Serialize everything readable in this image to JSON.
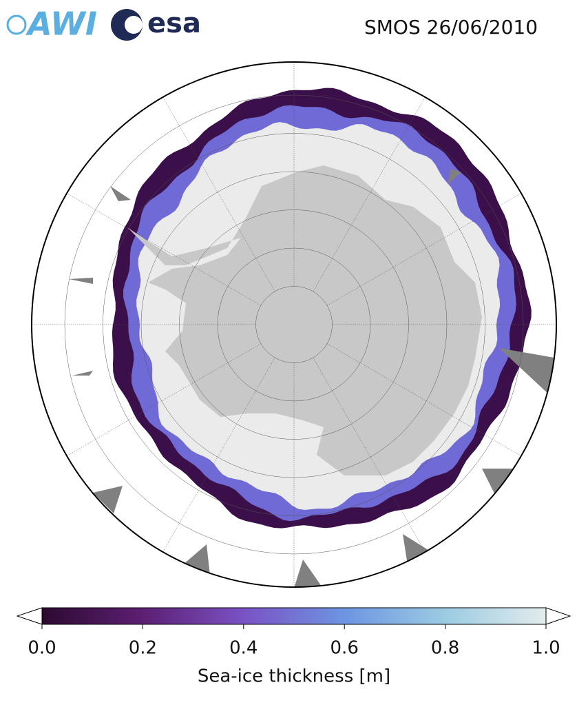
{
  "header": {
    "logos": [
      "AWI",
      "esa"
    ],
    "title": "SMOS 26/06/2010"
  },
  "colorbar": {
    "label": "Sea-ice thickness [m]",
    "lim": [
      0,
      1
    ],
    "ticks": [
      {
        "value": 0,
        "label": "0.0"
      },
      0.2,
      0.4,
      0.6,
      0.8,
      {
        "value": 1,
        "label": "1.0"
      }
    ],
    "colors": [
      "#2d0a30",
      "#5c1f73",
      "#7a52c4",
      "#6d95e2",
      "#9ccbe2",
      "#e2ecec"
    ],
    "extend": "both"
  }
}
